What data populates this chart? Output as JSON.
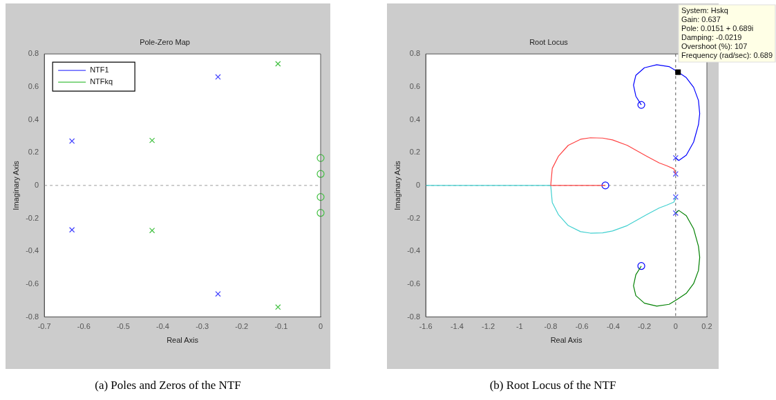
{
  "chart_data": [
    {
      "type": "scatter",
      "title": "Pole-Zero Map",
      "xlabel": "Real Axis",
      "ylabel": "Imaginary Axis",
      "xlim": [
        -0.7,
        0
      ],
      "ylim": [
        -0.8,
        0.8
      ],
      "xticks": [
        -0.7,
        -0.6,
        -0.5,
        -0.4,
        -0.3,
        -0.2,
        -0.1,
        0
      ],
      "yticks": [
        -0.8,
        -0.6,
        -0.4,
        -0.2,
        0,
        0.2,
        0.4,
        0.6,
        0.8
      ],
      "legend": "top left",
      "series": [
        {
          "name": "NTF1",
          "color": "#4040ff",
          "marker": "cross",
          "x": [
            -0.63,
            -0.63,
            -0.26,
            -0.26
          ],
          "values": [
            0.27,
            -0.27,
            0.66,
            -0.66
          ]
        },
        {
          "name": "NTFkq",
          "color": "#40c040",
          "marker": "cross",
          "x": [
            -0.427,
            -0.427,
            -0.108,
            -0.108
          ],
          "values": [
            0.274,
            -0.274,
            0.74,
            -0.74
          ]
        },
        {
          "color": "#40c040",
          "marker": "circle",
          "x": [
            0,
            0,
            0,
            0
          ],
          "values": [
            0.167,
            0.07,
            -0.07,
            -0.167
          ]
        }
      ],
      "ref_lines": [
        {
          "axis": "y",
          "value": 0,
          "color": "#999999",
          "line_style": "dashed"
        }
      ],
      "annotations": [
        "(a) Poles and Zeros of the NTF"
      ]
    },
    {
      "type": "line",
      "title": "Root Locus",
      "xlabel": "Real Axis",
      "ylabel": "Imaginary Axis",
      "xlim": [
        -1.6,
        0.2
      ],
      "ylim": [
        -0.8,
        0.8
      ],
      "xticks": [
        -1.6,
        -1.4,
        -1.2,
        -1,
        -0.8,
        -0.6,
        -0.4,
        -0.2,
        0,
        0.2
      ],
      "yticks": [
        -0.8,
        -0.6,
        -0.4,
        -0.2,
        0,
        0.2,
        0.4,
        0.6,
        0.8
      ],
      "series": [
        {
          "type": "line",
          "color": "#0000ff",
          "marker": "none",
          "x": [
            0,
            0.02,
            0.068,
            0.115,
            0.146,
            0.154,
            0.146,
            0.115,
            0.068,
            0.009,
            -0.042,
            -0.121,
            -0.2,
            -0.255,
            -0.27,
            -0.255,
            -0.22
          ],
          "values": [
            0.168,
            0.152,
            0.184,
            0.264,
            0.37,
            0.437,
            0.517,
            0.597,
            0.656,
            0.694,
            0.723,
            0.734,
            0.716,
            0.67,
            0.61,
            0.543,
            0.49
          ]
        },
        {
          "type": "line",
          "color": "#008000",
          "marker": "none",
          "x": [
            0,
            0.02,
            0.068,
            0.115,
            0.146,
            0.154,
            0.146,
            0.115,
            0.068,
            0.009,
            -0.042,
            -0.121,
            -0.2,
            -0.255,
            -0.27,
            -0.255,
            -0.22
          ],
          "values": [
            -0.168,
            -0.152,
            -0.184,
            -0.264,
            -0.37,
            -0.437,
            -0.517,
            -0.597,
            -0.656,
            -0.694,
            -0.723,
            -0.734,
            -0.716,
            -0.67,
            -0.61,
            -0.543,
            -0.49
          ]
        },
        {
          "type": "line",
          "color": "#ff4040",
          "marker": "none",
          "x": [
            0,
            -0.011,
            -0.058,
            -0.105,
            -0.184,
            -0.247,
            -0.31,
            -0.404,
            -0.467,
            -0.546,
            -0.609,
            -0.688,
            -0.751,
            -0.79,
            -0.8,
            -0.45
          ],
          "values": [
            0.07,
            0.101,
            0.12,
            0.137,
            0.177,
            0.21,
            0.244,
            0.277,
            0.288,
            0.29,
            0.281,
            0.244,
            0.177,
            0.104,
            0,
            0
          ]
        },
        {
          "type": "line",
          "color": "#40d0d0",
          "marker": "none",
          "x": [
            0,
            -0.011,
            -0.058,
            -0.105,
            -0.184,
            -0.247,
            -0.31,
            -0.404,
            -0.467,
            -0.546,
            -0.609,
            -0.688,
            -0.751,
            -0.79,
            -0.8,
            -1.6
          ],
          "values": [
            -0.07,
            -0.101,
            -0.12,
            -0.137,
            -0.177,
            -0.21,
            -0.244,
            -0.277,
            -0.288,
            -0.29,
            -0.281,
            -0.244,
            -0.177,
            -0.104,
            0,
            0
          ]
        },
        {
          "type": "scatter",
          "color": "#4040ff",
          "marker": "cross",
          "x": [
            0,
            0,
            0,
            0
          ],
          "values": [
            0.168,
            0.07,
            -0.07,
            -0.168
          ]
        },
        {
          "type": "scatter",
          "color": "#0000ff",
          "marker": "circle",
          "x": [
            -0.22,
            -0.22,
            -0.45
          ],
          "values": [
            0.49,
            -0.49,
            0
          ]
        }
      ],
      "ref_lines": [
        {
          "axis": "y",
          "value": 0,
          "color": "#999999",
          "line_style": "dashed"
        },
        {
          "axis": "x",
          "value": 0,
          "color": "#555555",
          "line_style": "dashed"
        }
      ],
      "annotations": [
        {
          "text": "System: Hskq\nGain: 0.637\nPole: 0.0151 + 0.689i\nDamping: -0.0219\nOvershoot (%): 107\nFrequency (rad/sec): 0.689",
          "x": 0.0151,
          "y": 0.689
        },
        "(b) Root Locus of the NTF"
      ]
    }
  ]
}
